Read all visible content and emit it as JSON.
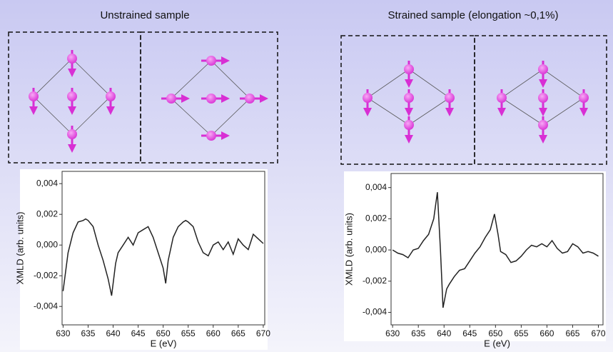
{
  "chart_data": [
    {
      "type": "line",
      "title": "Unstrained sample",
      "x_label": "E (eV)",
      "y_label": "XMLD (arb. units)",
      "color": "#222222",
      "x": [
        630,
        631,
        632,
        633,
        634,
        634.5,
        635,
        636,
        637,
        638,
        639,
        639.7,
        640.5,
        641,
        642,
        643,
        644,
        645,
        646,
        647,
        648,
        649,
        650,
        650.5,
        651,
        652,
        653,
        654,
        654.5,
        655,
        656,
        657,
        658,
        659,
        660,
        661,
        662,
        663,
        664,
        665,
        666,
        667,
        668,
        669,
        670
      ],
      "values": [
        -0.003,
        -0.0005,
        0.0008,
        0.0015,
        0.0016,
        0.0017,
        0.0016,
        0.0012,
        0.0,
        -0.001,
        -0.0022,
        -0.0033,
        -0.0012,
        -0.0005,
        0.0,
        0.0005,
        0.0,
        0.0008,
        0.001,
        0.0012,
        0.0005,
        -0.0005,
        -0.0015,
        -0.0025,
        -0.001,
        0.0005,
        0.0012,
        0.0015,
        0.0016,
        0.0015,
        0.0012,
        0.0002,
        -0.0005,
        -0.0007,
        0.0,
        0.0002,
        -0.0003,
        0.0002,
        -0.0006,
        0.0004,
        0.0,
        -0.0003,
        0.0007,
        0.0004,
        0.0001
      ],
      "xlim": [
        629.8,
        670.3
      ],
      "ylim": [
        -0.0052,
        0.0048
      ],
      "xticks": [
        630,
        635,
        640,
        645,
        650,
        655,
        660,
        665,
        670
      ],
      "yticks": [
        {
          "value": -0.004,
          "label": "-0,004"
        },
        {
          "value": -0.002,
          "label": "-0,002"
        },
        {
          "value": 0,
          "label": "0,000"
        },
        {
          "value": 0.002,
          "label": "0,002"
        },
        {
          "value": 0.004,
          "label": "0,004"
        }
      ]
    },
    {
      "type": "line",
      "title": "Strained sample (elongation ~0,1%)",
      "x_label": "E (eV)",
      "y_label": "XMLD (arb. units)",
      "color": "#222222",
      "x": [
        630,
        631,
        632,
        633,
        634,
        635,
        636,
        637,
        638,
        638.7,
        639.3,
        639.8,
        640.5,
        641,
        642,
        643,
        644,
        645,
        646,
        647,
        648,
        649,
        649.8,
        650.5,
        651,
        652,
        653,
        654,
        655,
        656,
        657,
        658,
        659,
        660,
        661,
        662,
        663,
        664,
        665,
        666,
        667,
        668,
        669,
        670
      ],
      "values": [
        0.0,
        -0.0002,
        -0.0003,
        -0.0005,
        0.0,
        0.0001,
        0.0006,
        0.001,
        0.002,
        0.0037,
        0.0,
        -0.0037,
        -0.0025,
        -0.0022,
        -0.0017,
        -0.0013,
        -0.0012,
        -0.0007,
        -0.0002,
        0.0002,
        0.0008,
        0.0013,
        0.0023,
        0.001,
        -0.0001,
        -0.0003,
        -0.0008,
        -0.0007,
        -0.0004,
        0.0,
        0.0003,
        0.0002,
        0.0004,
        0.0002,
        0.0006,
        0.0001,
        -0.0002,
        -0.0001,
        0.0004,
        0.0002,
        -0.0002,
        -0.0001,
        -0.0002,
        -0.0004
      ],
      "xlim": [
        629.7,
        670.9
      ],
      "ylim": [
        -0.0048,
        0.0049
      ],
      "xticks": [
        630,
        635,
        640,
        645,
        650,
        655,
        660,
        665,
        670
      ],
      "yticks": [
        {
          "value": -0.004,
          "label": "-0,004"
        },
        {
          "value": -0.002,
          "label": "-0,002"
        },
        {
          "value": 0,
          "label": "0,000"
        },
        {
          "value": 0.002,
          "label": "0,002"
        },
        {
          "value": 0.004,
          "label": "0,004"
        }
      ]
    }
  ]
}
